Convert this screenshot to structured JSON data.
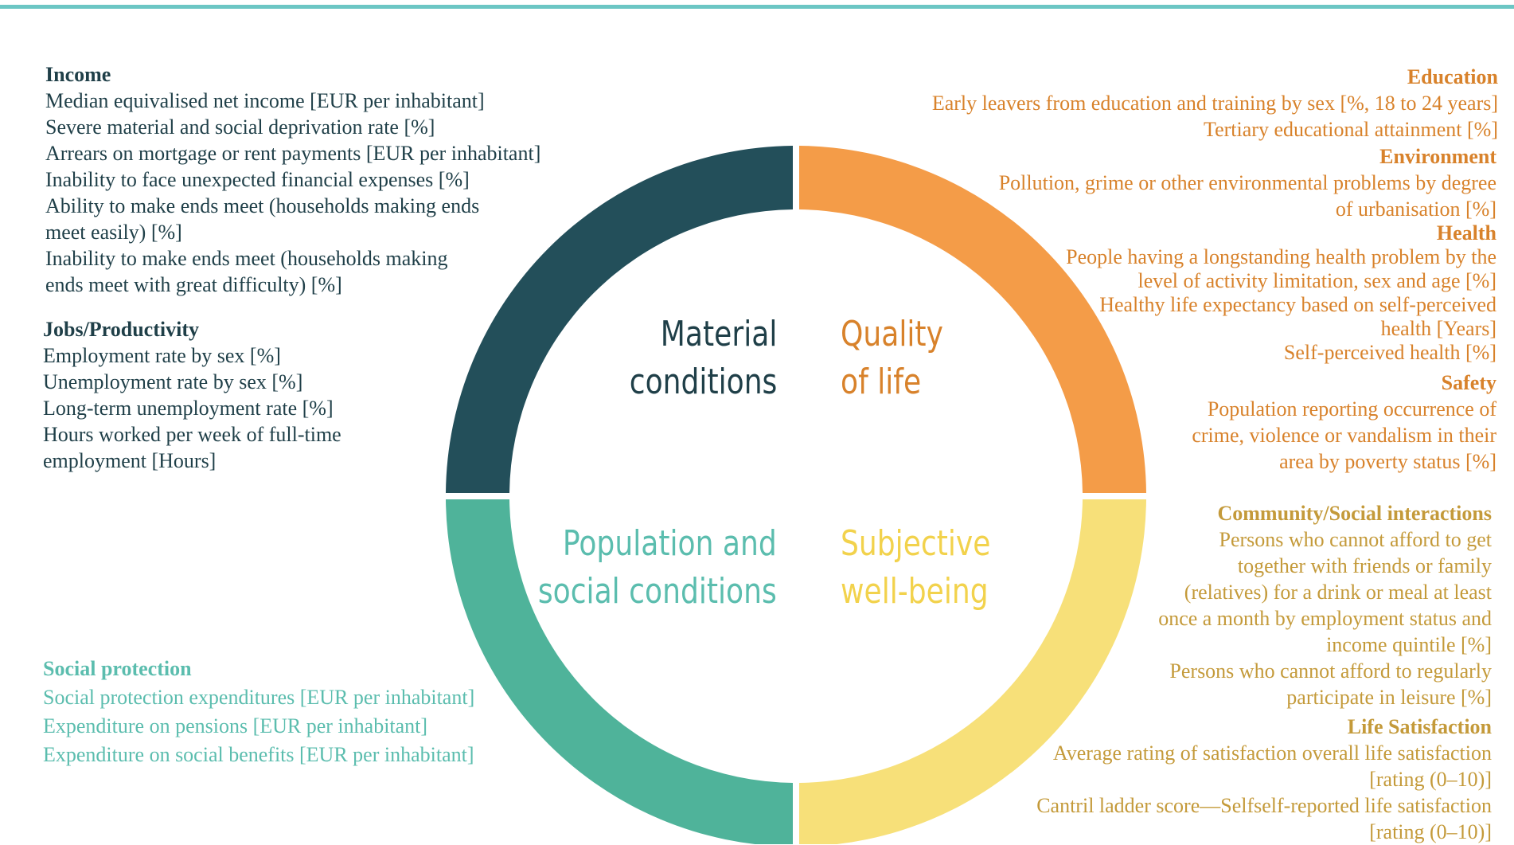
{
  "colors": {
    "rule": "#6cc6c4",
    "material": "#234f5a",
    "quality": "#f49c48",
    "population": "#4fb39a",
    "subjective": "#f7e079",
    "material_text": "#1f3f48",
    "quality_text": "#d8822b",
    "population_text": "#5bbdae",
    "subjective_text": "#f2d24c",
    "right_top_text": "#d8822b",
    "right_bottom_text": "#c49a3a"
  },
  "quadrants": {
    "material": "Material\nconditions",
    "quality": "Quality\nof life",
    "population": "Population and\nsocial conditions",
    "subjective": "Subjective\nwell-being"
  },
  "groups": {
    "income": {
      "heading": "Income",
      "items": [
        "Median equivalised net income [EUR per inhabitant]",
        "Severe material and social deprivation rate [%]",
        "Arrears on mortgage or rent payments [EUR per inhabitant]",
        "Inability to face unexpected financial expenses [%]",
        "Ability to make ends meet (households making ends\nmeet easily) [%]",
        "Inability to make ends meet (households making\nends meet with great difficulty) [%]"
      ]
    },
    "jobs": {
      "heading": "Jobs/Productivity",
      "items": [
        "Employment rate by sex [%]",
        "Unemployment rate by sex [%]",
        "Long-term unemployment rate [%]",
        "Hours worked per week of full-time\nemployment [Hours]"
      ]
    },
    "social_protection": {
      "heading": "Social protection",
      "items": [
        "Social protection expenditures [EUR per inhabitant]",
        "Expenditure on pensions [EUR per inhabitant]",
        "Expenditure on social benefits [EUR per inhabitant]"
      ]
    },
    "education": {
      "heading": "Education",
      "items": [
        "Early leavers from education and training by sex [%, 18 to 24 years]",
        "Tertiary educational attainment [%]"
      ]
    },
    "environment": {
      "heading": "Environment",
      "items": [
        "Pollution, grime or other environmental problems by degree\nof urbanisation [%]"
      ]
    },
    "health": {
      "heading": "Health",
      "items": [
        "People having a longstanding health problem by the\nlevel of activity limitation, sex and age [%]",
        "Healthy life expectancy based on self-perceived\nhealth [Years]",
        "Self-perceived health [%]"
      ]
    },
    "safety": {
      "heading": "Safety",
      "items": [
        "Population reporting occurrence of\ncrime, violence or vandalism in their\narea by poverty status [%]"
      ]
    },
    "community": {
      "heading": "Community/Social interactions",
      "items": [
        "Persons who cannot afford to get\ntogether with friends or family\n(relatives) for a drink or meal at least\nonce a month by employment status and\nincome quintile [%]",
        "Persons who cannot afford to regularly\nparticipate in leisure [%]"
      ]
    },
    "life_satisfaction": {
      "heading": "Life Satisfaction",
      "items": [
        "Average rating of satisfaction overall life satisfaction\n[rating (0–10)]",
        "Cantril ladder score—Selfself-reported life satisfaction\n[rating (0–10)]"
      ]
    }
  }
}
